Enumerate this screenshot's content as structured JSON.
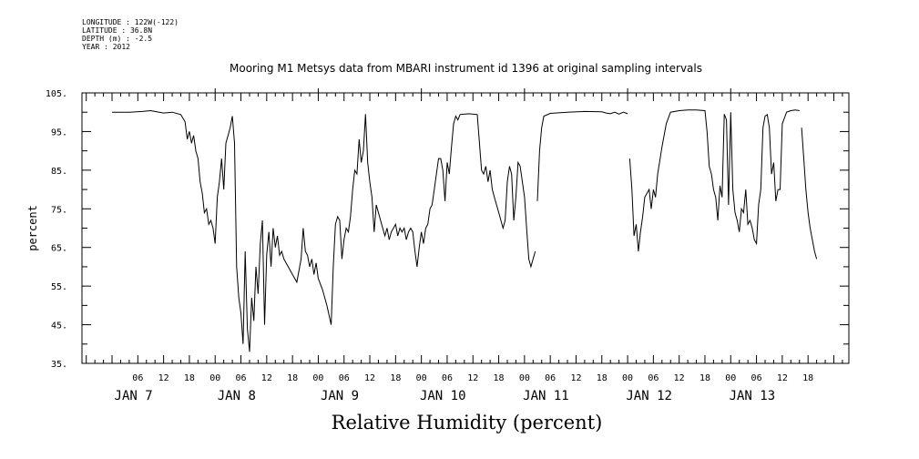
{
  "header": {
    "lines": [
      "LONGITUDE : 122W(-122)",
      "LATITUDE : 36.8N",
      "DEPTH (m) : -2.5",
      "YEAR : 2012"
    ]
  },
  "chart_data": {
    "type": "line",
    "title": "Mooring M1 Metsys data from MBARI instrument id 1396 at original sampling intervals",
    "xlabel": "Relative Humidity (percent)",
    "ylabel": "percent",
    "ylim": [
      35,
      105
    ],
    "yticks": [
      35,
      45,
      55,
      65,
      75,
      85,
      95,
      105
    ],
    "yticklabels": [
      "35.",
      "45.",
      "55.",
      "65.",
      "75.",
      "85.",
      "95.",
      "105."
    ],
    "x_range_hours": [
      0,
      164
    ],
    "x_reference": "Jan 7 00:00 2012 = hour 0",
    "hour_ticks": [
      "06",
      "12",
      "18",
      "00",
      "06",
      "12",
      "18",
      "00",
      "06",
      "12",
      "18",
      "00",
      "06",
      "12",
      "18",
      "00",
      "06",
      "12",
      "18",
      "00",
      "06",
      "12",
      "18",
      "00",
      "06",
      "12",
      "18"
    ],
    "day_labels": [
      "JAN  7",
      "JAN  8",
      "JAN  9",
      "JAN 10",
      "JAN 11",
      "JAN 12",
      "JAN 13"
    ],
    "grid": false,
    "segments": [
      [
        [
          0,
          100
        ],
        [
          4,
          100
        ],
        [
          7,
          100.2
        ],
        [
          9,
          100.4
        ],
        [
          11,
          100
        ],
        [
          12,
          99.8
        ],
        [
          14,
          100
        ],
        [
          16,
          99.4
        ],
        [
          17,
          97.5
        ],
        [
          17.5,
          93
        ],
        [
          18,
          95
        ],
        [
          18.5,
          92
        ],
        [
          19,
          94
        ],
        [
          19.5,
          90
        ],
        [
          20,
          88
        ],
        [
          20.5,
          82
        ],
        [
          21,
          79
        ],
        [
          21.5,
          74
        ],
        [
          22,
          75
        ],
        [
          22.5,
          71
        ],
        [
          23,
          72
        ],
        [
          23.5,
          70
        ],
        [
          24,
          66
        ],
        [
          24.5,
          78
        ],
        [
          25,
          82
        ],
        [
          25.5,
          88
        ],
        [
          26,
          80
        ],
        [
          26.5,
          92
        ],
        [
          27,
          94
        ],
        [
          27.5,
          96
        ],
        [
          28,
          99
        ],
        [
          28.5,
          92
        ],
        [
          29,
          60
        ],
        [
          29.5,
          52
        ],
        [
          30,
          48
        ],
        [
          30.5,
          40
        ],
        [
          31,
          64
        ],
        [
          31.5,
          44
        ],
        [
          32,
          38
        ],
        [
          32.5,
          52
        ],
        [
          33,
          46
        ],
        [
          33.5,
          60
        ],
        [
          34,
          53
        ],
        [
          34.5,
          66
        ],
        [
          35,
          72
        ],
        [
          35.5,
          45
        ],
        [
          36,
          63
        ],
        [
          36.5,
          69
        ],
        [
          37,
          60
        ],
        [
          37.5,
          70
        ],
        [
          38,
          65
        ],
        [
          38.5,
          68
        ],
        [
          39,
          63
        ],
        [
          39.5,
          64
        ],
        [
          40,
          62
        ],
        [
          41,
          60
        ],
        [
          42,
          58
        ],
        [
          43,
          56
        ],
        [
          44,
          62
        ],
        [
          44.5,
          70
        ],
        [
          45,
          64
        ],
        [
          45.5,
          63
        ],
        [
          46,
          60
        ],
        [
          46.5,
          62
        ],
        [
          47,
          58
        ],
        [
          47.5,
          61
        ],
        [
          48,
          57
        ],
        [
          49,
          54
        ],
        [
          50,
          50
        ],
        [
          51,
          45
        ],
        [
          51.5,
          60
        ],
        [
          52,
          71
        ],
        [
          52.5,
          73
        ],
        [
          53,
          72
        ],
        [
          53.5,
          62
        ],
        [
          54,
          67
        ],
        [
          54.5,
          70
        ],
        [
          55,
          69
        ],
        [
          55.5,
          73
        ],
        [
          56,
          80
        ],
        [
          56.5,
          85
        ],
        [
          57,
          84
        ],
        [
          57.5,
          93
        ],
        [
          58,
          87
        ],
        [
          58.5,
          90
        ],
        [
          59,
          99.5
        ],
        [
          59.5,
          87
        ],
        [
          60,
          82
        ],
        [
          60.5,
          78
        ],
        [
          61,
          69
        ],
        [
          61.5,
          76
        ],
        [
          62,
          74
        ],
        [
          62.5,
          72
        ],
        [
          63,
          70
        ],
        [
          63.5,
          68
        ],
        [
          64,
          70
        ],
        [
          64.5,
          67
        ],
        [
          65,
          69
        ],
        [
          65.5,
          70
        ],
        [
          66,
          71
        ],
        [
          66.5,
          68
        ],
        [
          67,
          70
        ],
        [
          67.5,
          69
        ],
        [
          68,
          70
        ],
        [
          68.5,
          67
        ],
        [
          69,
          69
        ],
        [
          69.5,
          70
        ],
        [
          70,
          69
        ],
        [
          70.5,
          64
        ],
        [
          71,
          60
        ],
        [
          71.5,
          65
        ],
        [
          72,
          69
        ],
        [
          72.5,
          66
        ],
        [
          73,
          70
        ],
        [
          73.5,
          71
        ],
        [
          74,
          75
        ],
        [
          74.5,
          76
        ],
        [
          75,
          80
        ],
        [
          76,
          88
        ],
        [
          76.5,
          88
        ],
        [
          77,
          85
        ],
        [
          77.5,
          77
        ],
        [
          78,
          87
        ],
        [
          78.5,
          84
        ],
        [
          79,
          91
        ],
        [
          79.5,
          97
        ],
        [
          80,
          99
        ],
        [
          80.5,
          98
        ],
        [
          81,
          99.4
        ],
        [
          83,
          99.6
        ],
        [
          85,
          99.4
        ],
        [
          86,
          85
        ],
        [
          86.5,
          84
        ],
        [
          87,
          86
        ],
        [
          87.5,
          82
        ],
        [
          88,
          85
        ],
        [
          88.5,
          80
        ],
        [
          89,
          78
        ],
        [
          90,
          74
        ],
        [
          91,
          70
        ],
        [
          91.5,
          72
        ],
        [
          92,
          82
        ],
        [
          92.5,
          86
        ],
        [
          93,
          84
        ],
        [
          93.5,
          72
        ],
        [
          94,
          78
        ],
        [
          94.5,
          87
        ],
        [
          95,
          86
        ],
        [
          95.5,
          82
        ],
        [
          96,
          78
        ],
        [
          96.5,
          70
        ],
        [
          97,
          62
        ],
        [
          97.5,
          60
        ],
        [
          98,
          62
        ],
        [
          98.5,
          64
        ]
      ],
      [
        [
          99,
          77
        ],
        [
          99.5,
          90
        ],
        [
          100,
          96
        ],
        [
          100.5,
          99
        ],
        [
          102,
          99.7
        ],
        [
          106,
          100
        ],
        [
          110,
          100.2
        ],
        [
          114,
          100.1
        ],
        [
          115,
          99.8
        ],
        [
          116,
          99.6
        ],
        [
          117,
          100
        ],
        [
          118,
          99.5
        ],
        [
          119,
          100
        ],
        [
          120,
          99.6
        ]
      ],
      [
        [
          120.5,
          88
        ],
        [
          121,
          80
        ],
        [
          121.5,
          68
        ],
        [
          122,
          71
        ],
        [
          122.5,
          64
        ],
        [
          123,
          69
        ],
        [
          123.5,
          73
        ],
        [
          124,
          78
        ],
        [
          124.5,
          79
        ],
        [
          125,
          80
        ],
        [
          125.5,
          75
        ],
        [
          126,
          80
        ],
        [
          126.5,
          78
        ],
        [
          127,
          84
        ],
        [
          128,
          91
        ],
        [
          129,
          97
        ],
        [
          130,
          100
        ],
        [
          132,
          100.4
        ],
        [
          134,
          100.6
        ],
        [
          136,
          100.6
        ],
        [
          138,
          100.4
        ],
        [
          138.5,
          95
        ],
        [
          139,
          86
        ],
        [
          139.5,
          84
        ],
        [
          140,
          80
        ],
        [
          140.5,
          78
        ],
        [
          141,
          72
        ],
        [
          141.5,
          81
        ],
        [
          142,
          78
        ],
        [
          142.5,
          99.5
        ],
        [
          143,
          98
        ],
        [
          143.5,
          76
        ],
        [
          144,
          100
        ],
        [
          144.5,
          80
        ],
        [
          145,
          74
        ],
        [
          145.5,
          72
        ],
        [
          146,
          69
        ],
        [
          146.5,
          75
        ],
        [
          147,
          74
        ],
        [
          147.5,
          80
        ],
        [
          148,
          71
        ],
        [
          148.5,
          72
        ],
        [
          149,
          70
        ],
        [
          149.5,
          67
        ],
        [
          150,
          66
        ],
        [
          150.5,
          76
        ],
        [
          151,
          80
        ],
        [
          151.5,
          96
        ],
        [
          152,
          99
        ],
        [
          152.5,
          99.4
        ],
        [
          153,
          96
        ],
        [
          153.5,
          84
        ],
        [
          154,
          87
        ],
        [
          154.5,
          77
        ],
        [
          155,
          80
        ],
        [
          155.5,
          80
        ],
        [
          156,
          97
        ],
        [
          157,
          100
        ],
        [
          158,
          100.4
        ],
        [
          159,
          100.6
        ],
        [
          160,
          100.4
        ]
      ],
      [
        [
          160.5,
          96
        ],
        [
          161,
          88
        ],
        [
          161.5,
          80
        ],
        [
          162,
          74
        ],
        [
          162.5,
          70
        ],
        [
          163,
          67
        ],
        [
          163.5,
          64
        ],
        [
          164,
          62
        ]
      ]
    ]
  }
}
